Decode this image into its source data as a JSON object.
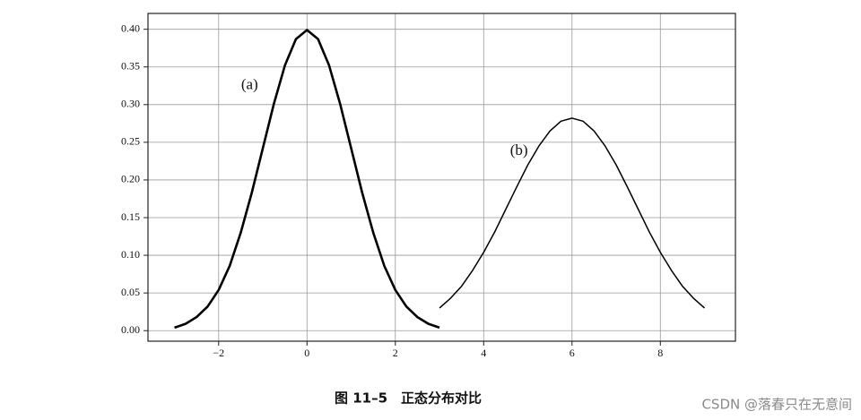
{
  "chart_data": {
    "type": "line",
    "series": [
      {
        "name": "(a)",
        "color": "#000000",
        "width": 2.6,
        "x": [
          -3,
          -2.75,
          -2.5,
          -2.25,
          -2,
          -1.75,
          -1.5,
          -1.25,
          -1,
          -0.75,
          -0.5,
          -0.25,
          0,
          0.25,
          0.5,
          0.75,
          1,
          1.25,
          1.5,
          1.75,
          2,
          2.25,
          2.5,
          2.75,
          3
        ],
        "values": [
          0.004,
          0.009,
          0.018,
          0.032,
          0.054,
          0.086,
          0.13,
          0.183,
          0.242,
          0.301,
          0.352,
          0.387,
          0.399,
          0.387,
          0.352,
          0.301,
          0.242,
          0.183,
          0.13,
          0.086,
          0.054,
          0.032,
          0.018,
          0.009,
          0.004
        ]
      },
      {
        "name": "(b)",
        "color": "#000000",
        "width": 1.5,
        "x": [
          3,
          3.25,
          3.5,
          3.75,
          4,
          4.25,
          4.5,
          4.75,
          5,
          5.25,
          5.5,
          5.75,
          6,
          6.25,
          6.5,
          6.75,
          7,
          7.25,
          7.5,
          7.75,
          8,
          8.25,
          8.5,
          8.75,
          9
        ],
        "values": [
          0.03,
          0.043,
          0.059,
          0.08,
          0.104,
          0.131,
          0.161,
          0.191,
          0.22,
          0.245,
          0.265,
          0.278,
          0.282,
          0.278,
          0.265,
          0.245,
          0.22,
          0.191,
          0.161,
          0.131,
          0.104,
          0.08,
          0.059,
          0.043,
          0.03
        ]
      }
    ],
    "xlim": [
      -3.6,
      9.7
    ],
    "xticks": [
      {
        "value": -2,
        "label": "−2"
      },
      0,
      2,
      4,
      6,
      8
    ],
    "ylim": [
      -0.014,
      0.421
    ],
    "yticks": [
      {
        "value": 0,
        "label": "0.00"
      },
      {
        "value": 0.05,
        "label": "0.05"
      },
      {
        "value": 0.1,
        "label": "0.10"
      },
      {
        "value": 0.15,
        "label": "0.15"
      },
      {
        "value": 0.2,
        "label": "0.20"
      },
      {
        "value": 0.25,
        "label": "0.25"
      },
      {
        "value": 0.3,
        "label": "0.30"
      },
      {
        "value": 0.35,
        "label": "0.35"
      },
      {
        "value": 0.4,
        "label": "0.40"
      }
    ],
    "grid": true,
    "caption": "图 11–5　正态分布对比"
  },
  "watermark": "CSDN @落春只在无意间"
}
